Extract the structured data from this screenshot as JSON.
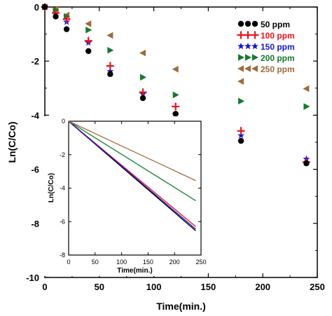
{
  "chart_data": [
    {
      "type": "scatter",
      "xlabel": "Time(min.)",
      "ylabel": "Ln(C/Co)",
      "xlim": [
        0,
        250
      ],
      "ylim": [
        -10,
        0
      ],
      "xticks": [
        "0",
        "50",
        "100",
        "150",
        "200",
        "250"
      ],
      "yticks": [
        "0",
        "-2",
        "-4",
        "-6",
        "-8",
        "-10"
      ],
      "legend_position": "top-right",
      "series": [
        {
          "name": "50 ppm",
          "color": "#000000",
          "marker": "circle",
          "x": [
            0,
            10,
            20,
            40,
            60,
            90,
            120,
            180,
            240
          ],
          "y": [
            0,
            -0.35,
            -0.82,
            -1.63,
            -2.48,
            -3.37,
            -3.95,
            -4.95,
            -5.78
          ]
        },
        {
          "name": "100 ppm",
          "color": "#e8141c",
          "marker": "plus",
          "x": [
            0,
            10,
            20,
            40,
            60,
            90,
            120,
            180,
            240
          ],
          "y": [
            0,
            -0.22,
            -0.45,
            -1.25,
            -2.18,
            -3.15,
            -3.68,
            -4.58,
            -5.73
          ]
        },
        {
          "name": "150 ppm",
          "color": "#1414d2",
          "marker": "star",
          "x": [
            0,
            10,
            20,
            40,
            60,
            90,
            120,
            180,
            240
          ],
          "y": [
            0,
            -0.25,
            -0.55,
            -1.32,
            -2.38,
            -3.22,
            -3.98,
            -4.75,
            -5.62
          ]
        },
        {
          "name": "200 ppm",
          "color": "#127a2e",
          "marker": "triangle-right",
          "x": [
            0,
            10,
            20,
            40,
            60,
            90,
            120,
            180,
            240
          ],
          "y": [
            0,
            -0.12,
            -0.35,
            -0.85,
            -1.6,
            -2.6,
            -3.25,
            -3.48,
            -3.68
          ]
        },
        {
          "name": "250 ppm",
          "color": "#a06a3c",
          "marker": "triangle-left",
          "x": [
            0,
            10,
            20,
            40,
            60,
            90,
            120,
            180,
            240
          ],
          "y": [
            0,
            -0.08,
            -0.3,
            -0.62,
            -1.05,
            -1.7,
            -2.3,
            -2.75,
            -3.02
          ]
        }
      ]
    },
    {
      "type": "line",
      "inset": true,
      "xlabel": "Time(min.)",
      "ylabel": "Ln(C/Co)",
      "xlim": [
        0,
        250
      ],
      "ylim": [
        -8,
        0
      ],
      "xticks": [
        "0",
        "50",
        "100",
        "150",
        "200",
        "250"
      ],
      "yticks": [
        "0",
        "-2",
        "-4",
        "-6",
        "-8"
      ],
      "series": [
        {
          "name": "50 ppm",
          "color": "#000000",
          "x": [
            0,
            240
          ],
          "y": [
            0,
            -6.55
          ]
        },
        {
          "name": "100 ppm",
          "color": "#e8141c",
          "x": [
            0,
            240
          ],
          "y": [
            0,
            -6.3
          ]
        },
        {
          "name": "150 ppm",
          "color": "#1414d2",
          "x": [
            0,
            240
          ],
          "y": [
            0,
            -6.45
          ]
        },
        {
          "name": "200 ppm",
          "color": "#127a2e",
          "x": [
            0,
            240
          ],
          "y": [
            0,
            -4.75
          ]
        },
        {
          "name": "250 ppm",
          "color": "#a06a3c",
          "x": [
            0,
            240
          ],
          "y": [
            0,
            -3.55
          ]
        }
      ]
    }
  ]
}
